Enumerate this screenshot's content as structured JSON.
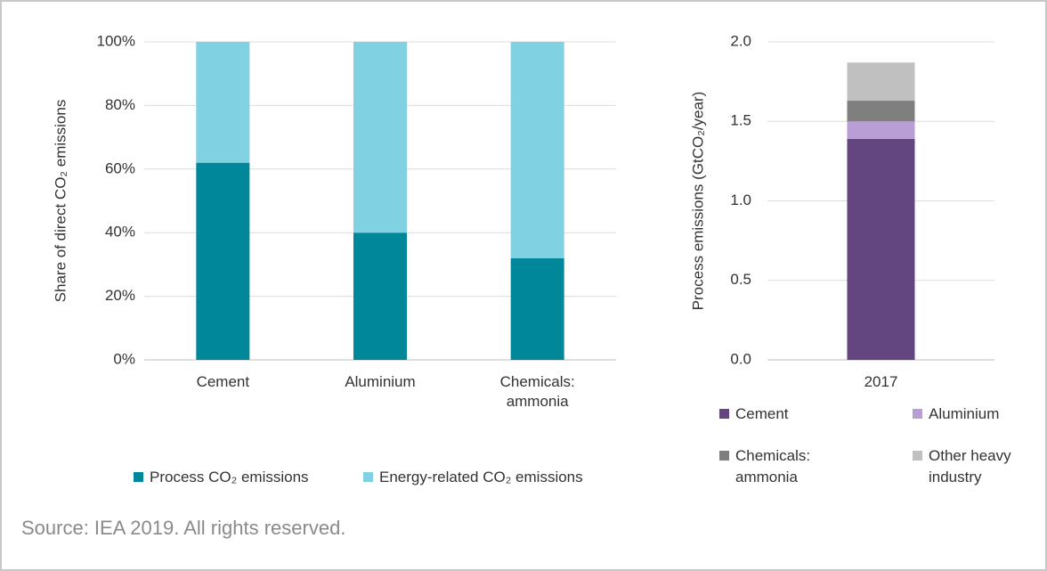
{
  "chart_data": [
    {
      "type": "bar",
      "stacked": true,
      "y_label": "Share of direct CO₂ emissions",
      "categories": [
        "Cement",
        "Aluminium",
        "Chemicals: ammonia"
      ],
      "series": [
        {
          "name": "Process CO₂ emissions",
          "color": "#00889a",
          "values": [
            62,
            40,
            32
          ]
        },
        {
          "name": "Energy-related CO₂ emissions",
          "color": "#80d2e3",
          "values": [
            38,
            60,
            68
          ]
        }
      ],
      "ylim": [
        0,
        100
      ],
      "yticks": [
        {
          "value": 0,
          "label": "0%"
        },
        {
          "value": 20,
          "label": "20%"
        },
        {
          "value": 40,
          "label": "40%"
        },
        {
          "value": 60,
          "label": "60%"
        },
        {
          "value": 80,
          "label": "80%"
        },
        {
          "value": 100,
          "label": "100%"
        }
      ],
      "grid": true,
      "legend": "bottom"
    },
    {
      "type": "bar",
      "stacked": true,
      "y_label": "Process emissions (GtCO₂/year)",
      "categories": [
        "2017"
      ],
      "series": [
        {
          "name": "Cement",
          "color": "#634680",
          "values": [
            1.39
          ]
        },
        {
          "name": "Aluminium",
          "color": "#b79ed4",
          "values": [
            0.11
          ]
        },
        {
          "name": "Chemicals: ammonia",
          "color": "#7f7f7f",
          "values": [
            0.13
          ]
        },
        {
          "name": "Other heavy industry",
          "color": "#c0c0c0",
          "values": [
            0.24
          ]
        }
      ],
      "ylim": [
        0,
        2
      ],
      "yticks": [
        {
          "value": 0,
          "label": "0.0"
        },
        0.5,
        {
          "value": 1,
          "label": "1.0"
        },
        1.5,
        {
          "value": 2,
          "label": "2.0"
        }
      ],
      "grid": true,
      "legend": "bottom"
    }
  ],
  "source": "Source: IEA 2019. All rights reserved."
}
